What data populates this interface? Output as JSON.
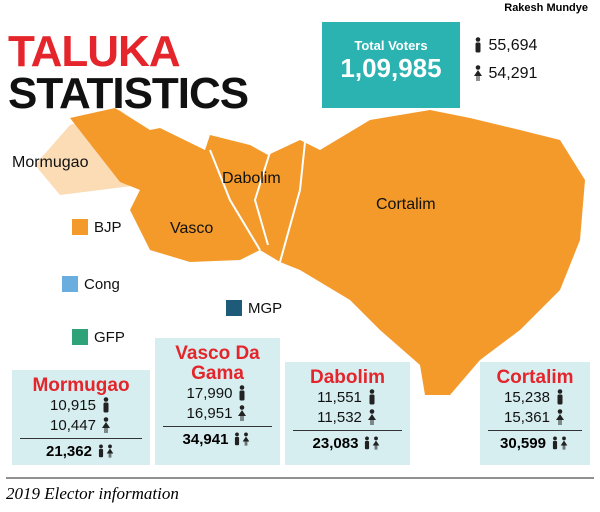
{
  "credit": "Rakesh Mundye",
  "title": {
    "line1": "TALUKA",
    "line2": "STATISTICS"
  },
  "total_voters": {
    "label": "Total Voters",
    "value": "1,09,985",
    "male": "55,694",
    "female": "54,291"
  },
  "map": {
    "regions": [
      "Mormugao",
      "Vasco",
      "Dabolim",
      "Cortalim"
    ]
  },
  "legend": [
    {
      "party": "BJP",
      "color": "#f39a2b"
    },
    {
      "party": "Cong",
      "color": "#6aaee0"
    },
    {
      "party": "GFP",
      "color": "#2ea37a"
    },
    {
      "party": "MGP",
      "color": "#1d5b78"
    }
  ],
  "constituencies": [
    {
      "name": "Mormugao",
      "male": "10,915",
      "female": "10,447",
      "total": "21,362"
    },
    {
      "name": "Vasco Da Gama",
      "male": "17,990",
      "female": "16,951",
      "total": "34,941"
    },
    {
      "name": "Dabolim",
      "male": "11,551",
      "female": "11,532",
      "total": "23,083"
    },
    {
      "name": "Cortalim",
      "male": "15,238",
      "female": "15,361",
      "total": "30,599"
    }
  ],
  "footer": "2019 Elector information"
}
